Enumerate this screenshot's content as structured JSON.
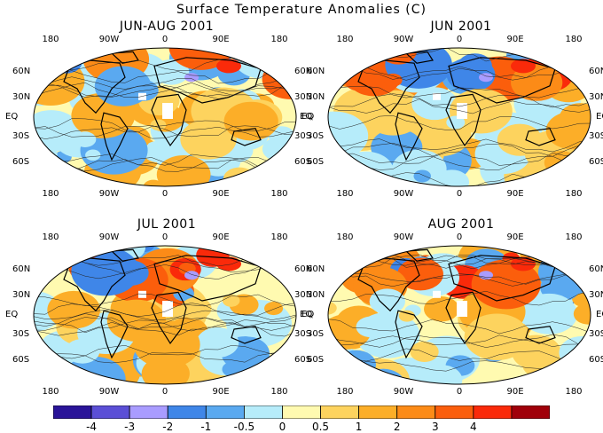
{
  "title": "Surface Temperature Anomalies (C)",
  "lon_labels": [
    "180",
    "90W",
    "0",
    "90E",
    "180"
  ],
  "lat_labels": [
    "60N",
    "30N",
    "EQ",
    "30S",
    "60S"
  ],
  "panels": [
    {
      "title": "JUN-AUG 2001",
      "pattern": "warm-north"
    },
    {
      "title": "JUN 2001",
      "pattern": "mixed"
    },
    {
      "title": "JUL 2001",
      "pattern": "cool-siberia"
    },
    {
      "title": "AUG 2001",
      "pattern": "warm-euro"
    }
  ],
  "colorbar": {
    "colors": [
      "#2a1499",
      "#5b4fd6",
      "#a99cff",
      "#3f86e8",
      "#5aa9f0",
      "#b6ecfa",
      "#fffab0",
      "#fdd35e",
      "#fcae28",
      "#fc8b17",
      "#fb5e0c",
      "#fa2a0a",
      "#a0000a"
    ],
    "labels": [
      "-4",
      "-3",
      "-2",
      "-1",
      "-0.5",
      "0",
      "0.5",
      "1",
      "2",
      "3",
      "4"
    ]
  }
}
